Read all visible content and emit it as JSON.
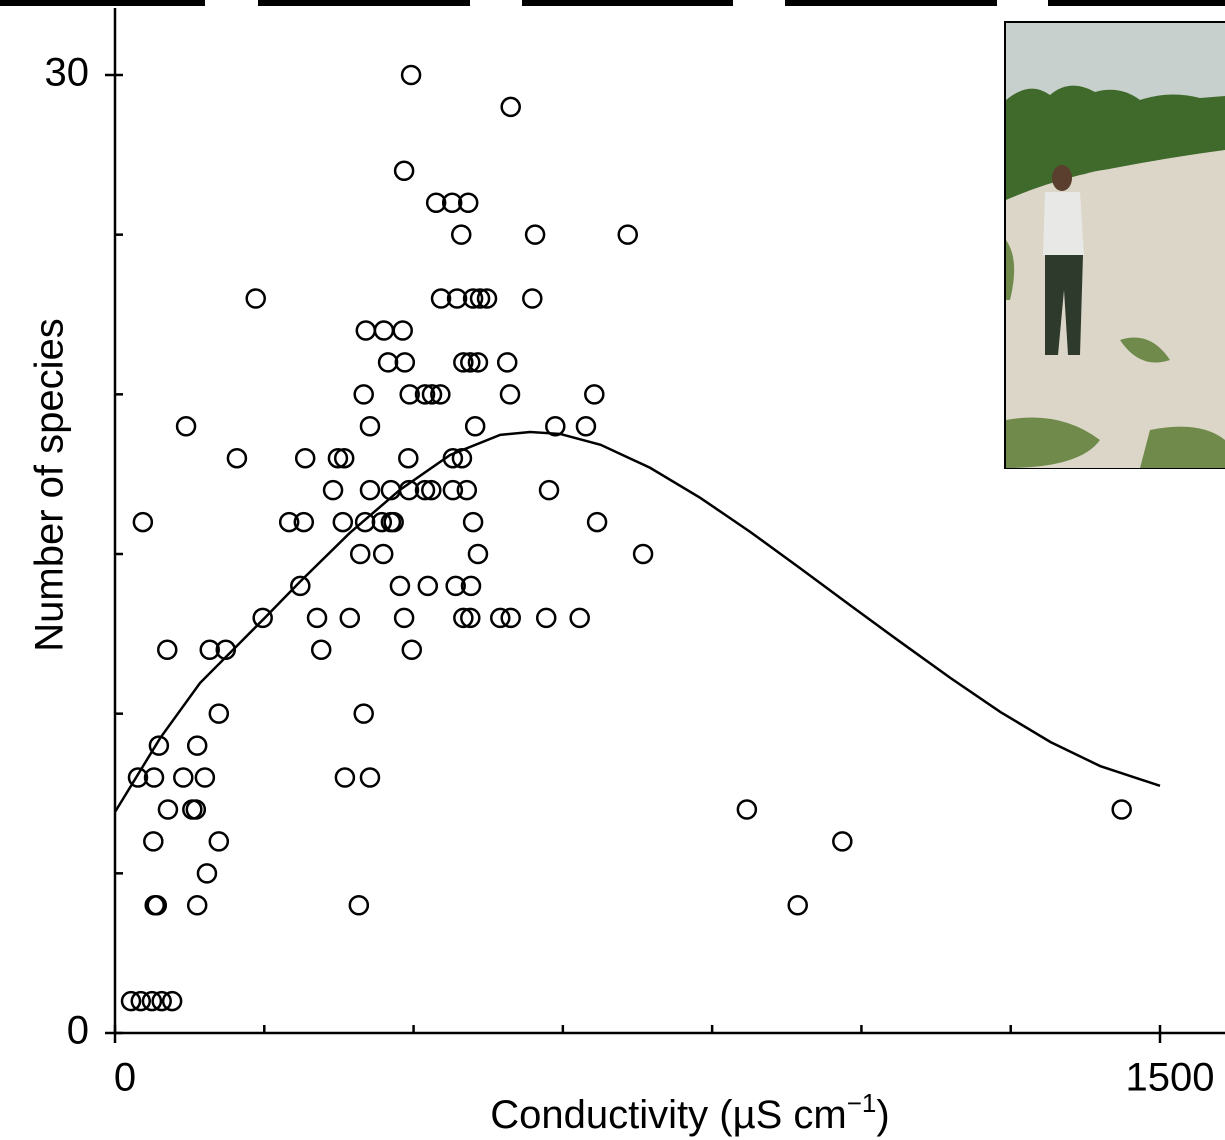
{
  "chart_data": {
    "type": "scatter",
    "ylabel": "Number of species",
    "xlabel_parts": [
      "Conductivity (µS cm",
      "−1",
      ")"
    ],
    "xlim": [
      0,
      1500
    ],
    "ylim": [
      0,
      30
    ],
    "xticks": [
      0,
      1500
    ],
    "yticks": [
      0,
      30
    ],
    "x_minor_divisions": 7,
    "y_minor_divisions": 6,
    "series": [
      {
        "type": "scatter",
        "color": "#000000",
        "marker_fill": "none",
        "x": [
          425,
          568,
          415,
          461,
          484,
          507,
          497,
          603,
          736,
          202,
          468,
          491,
          514,
          524,
          534,
          599,
          360,
          386,
          413,
          392,
          416,
          500,
          510,
          521,
          563,
          357,
          423,
          445,
          455,
          467,
          567,
          688,
          102,
          366,
          517,
          632,
          676,
          175,
          273,
          320,
          329,
          421,
          485,
          498,
          313,
          366,
          396,
          422,
          445,
          454,
          485,
          505,
          623,
          40,
          250,
          271,
          327,
          359,
          383,
          396,
          400,
          514,
          692,
          352,
          385,
          521,
          758,
          266,
          409,
          449,
          489,
          511,
          212,
          290,
          337,
          415,
          500,
          510,
          553,
          568,
          619,
          667,
          75,
          136,
          159,
          296,
          426,
          149,
          357,
          63,
          118,
          33,
          56,
          98,
          129,
          330,
          366,
          76,
          111,
          116,
          907,
          1445,
          55,
          149,
          1044,
          132,
          57,
          60,
          118,
          350,
          980,
          23,
          37,
          53,
          67,
          82
        ],
        "values": [
          30,
          29,
          27,
          26,
          26,
          26,
          25,
          25,
          25,
          23,
          23,
          23,
          23,
          23,
          23,
          23,
          22,
          22,
          22,
          21,
          21,
          21,
          21,
          21,
          21,
          20,
          20,
          20,
          20,
          20,
          20,
          20,
          19,
          19,
          19,
          19,
          19,
          18,
          18,
          18,
          18,
          18,
          18,
          18,
          17,
          17,
          17,
          17,
          17,
          17,
          17,
          17,
          17,
          16,
          16,
          16,
          16,
          16,
          16,
          16,
          16,
          16,
          16,
          15,
          15,
          15,
          15,
          14,
          14,
          14,
          14,
          14,
          13,
          13,
          13,
          13,
          13,
          13,
          13,
          13,
          13,
          13,
          12,
          12,
          12,
          12,
          12,
          10,
          10,
          9,
          9,
          8,
          8,
          8,
          8,
          8,
          8,
          7,
          7,
          7,
          7,
          7,
          6,
          6,
          6,
          5,
          4,
          4,
          4,
          4,
          4,
          1,
          1,
          1,
          1,
          1
        ]
      },
      {
        "type": "line",
        "color": "#000000",
        "x": [
          0,
          65,
          122,
          215,
          265,
          337,
          409,
          481,
          553,
          596,
          639,
          697,
          768,
          840,
          912,
          983,
          1055,
          1127,
          1199,
          1271,
          1343,
          1414,
          1500
        ],
        "values": [
          6.92,
          9.24,
          10.96,
          13.0,
          14.12,
          15.66,
          17.01,
          18.1,
          18.73,
          18.82,
          18.76,
          18.42,
          17.7,
          16.76,
          15.69,
          14.56,
          13.4,
          12.25,
          11.12,
          10.05,
          9.11,
          8.36,
          7.74
        ]
      }
    ]
  }
}
